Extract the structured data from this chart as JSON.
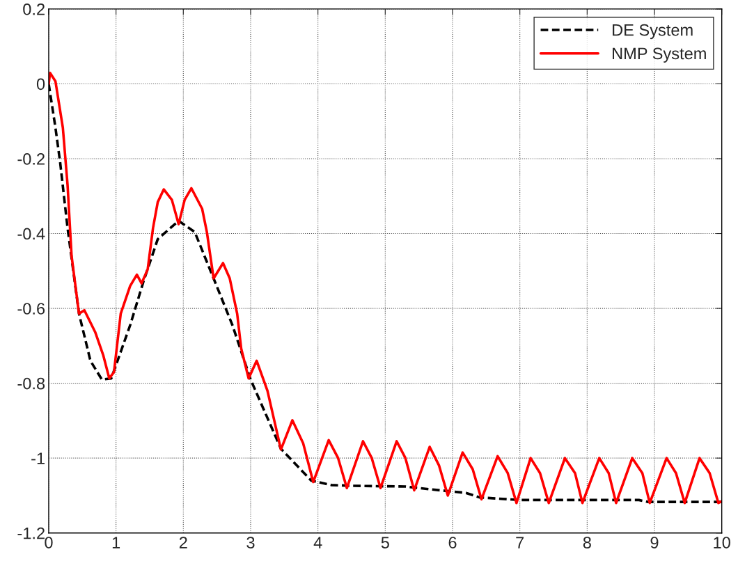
{
  "chart_data": {
    "type": "line",
    "series": [
      {
        "name": "DE System",
        "color": "#000000",
        "line_style": "dashed",
        "x": [
          0,
          0.1,
          0.17,
          0.28,
          0.45,
          0.62,
          0.79,
          0.93,
          1.21,
          1.41,
          1.62,
          1.93,
          2.17,
          2.45,
          2.73,
          3.0,
          3.45,
          3.9,
          4.2,
          4.5,
          5.3,
          5.7,
          6.2,
          6.4,
          7.0,
          8.77,
          8.9,
          10
        ],
        "values": [
          0.0,
          -0.117,
          -0.21,
          -0.385,
          -0.614,
          -0.74,
          -0.79,
          -0.787,
          -0.645,
          -0.527,
          -0.415,
          -0.366,
          -0.396,
          -0.52,
          -0.645,
          -0.79,
          -0.975,
          -1.06,
          -1.072,
          -1.074,
          -1.076,
          -1.084,
          -1.093,
          -1.105,
          -1.112,
          -1.112,
          -1.117,
          -1.117
        ]
      },
      {
        "name": "NMP System",
        "color": "#ff0000",
        "line_style": "solid",
        "x": [
          0,
          0.02,
          0.1,
          0.21,
          0.28,
          0.34,
          0.45,
          0.53,
          0.69,
          0.81,
          0.9,
          0.97,
          1.07,
          1.21,
          1.31,
          1.38,
          1.47,
          1.55,
          1.62,
          1.71,
          1.83,
          1.93,
          2.02,
          2.12,
          2.28,
          2.35,
          2.45,
          2.59,
          2.69,
          2.8,
          2.86,
          2.97,
          3.09,
          3.25,
          3.45,
          3.62,
          3.78,
          3.93,
          4.16,
          4.3,
          4.43,
          4.67,
          4.8,
          4.93,
          5.17,
          5.3,
          5.43,
          5.66,
          5.8,
          5.93,
          6.15,
          6.3,
          6.43,
          6.67,
          6.82,
          6.95,
          7.16,
          7.3,
          7.43,
          7.67,
          7.82,
          7.93,
          8.18,
          8.32,
          8.43,
          8.67,
          8.82,
          8.93,
          9.18,
          9.32,
          9.45,
          9.67,
          9.82,
          9.95,
          10
        ],
        "values": [
          0.0,
          0.029,
          0.007,
          -0.117,
          -0.27,
          -0.46,
          -0.614,
          -0.605,
          -0.663,
          -0.725,
          -0.787,
          -0.77,
          -0.614,
          -0.54,
          -0.51,
          -0.533,
          -0.496,
          -0.385,
          -0.316,
          -0.282,
          -0.31,
          -0.375,
          -0.31,
          -0.279,
          -0.334,
          -0.396,
          -0.52,
          -0.479,
          -0.52,
          -0.614,
          -0.707,
          -0.787,
          -0.74,
          -0.82,
          -0.977,
          -0.899,
          -0.96,
          -1.064,
          -0.952,
          -1.0,
          -1.08,
          -0.955,
          -1.0,
          -1.08,
          -0.955,
          -1.0,
          -1.086,
          -0.97,
          -1.02,
          -1.1,
          -0.985,
          -1.03,
          -1.11,
          -0.995,
          -1.04,
          -1.12,
          -1.0,
          -1.04,
          -1.12,
          -1.0,
          -1.04,
          -1.12,
          -1.0,
          -1.04,
          -1.12,
          -1.0,
          -1.04,
          -1.12,
          -1.0,
          -1.04,
          -1.12,
          -1.0,
          -1.04,
          -1.12,
          -1.115
        ]
      }
    ],
    "xlim": [
      0,
      10
    ],
    "xticks": [
      0,
      1,
      2,
      3,
      4,
      5,
      6,
      7,
      8,
      9,
      10
    ],
    "ylim": [
      -1.2,
      0.2
    ],
    "yticks": [
      {
        "value": -1.2,
        "label": "-1.2"
      },
      {
        "value": -1,
        "label": "-1"
      },
      {
        "value": -0.8,
        "label": "-0.8"
      },
      {
        "value": -0.6,
        "label": "-0.6"
      },
      {
        "value": -0.4,
        "label": "-0.4"
      },
      {
        "value": -0.2,
        "label": "-0.2"
      },
      {
        "value": 0,
        "label": "0"
      },
      {
        "value": 0.2,
        "label": "0.2"
      }
    ],
    "grid": true,
    "legend": "top right"
  }
}
